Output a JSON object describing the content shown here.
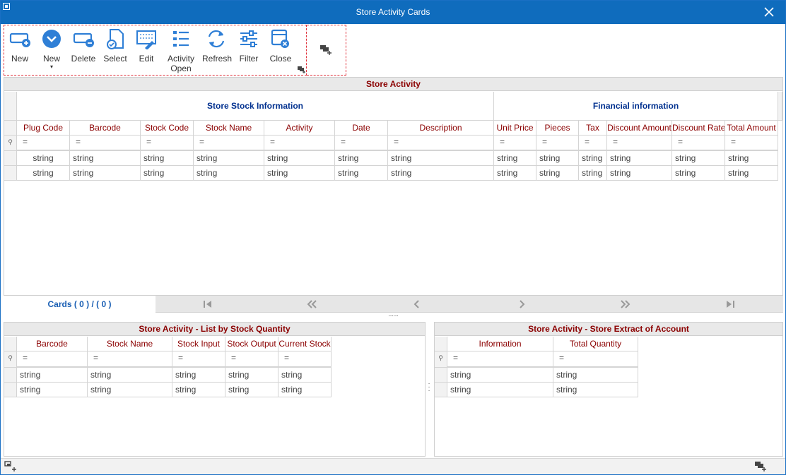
{
  "window": {
    "title": "Store Activity Cards",
    "accent": "#0f6cbd",
    "header_text_color": "#8b0000",
    "band_text_color": "#00308f"
  },
  "toolbar": {
    "buttons": [
      {
        "label": "New",
        "icon": "new-card-icon"
      },
      {
        "label": "New",
        "icon": "chevron-down-circle-icon",
        "caret": "▾"
      },
      {
        "label": "Delete",
        "icon": "delete-card-icon"
      },
      {
        "label": "Select",
        "icon": "select-document-icon"
      },
      {
        "label": "Edit",
        "icon": "edit-grid-icon"
      },
      {
        "label": "Activity",
        "label2": "Open",
        "icon": "list-icon"
      },
      {
        "label": "Refresh",
        "icon": "refresh-icon"
      },
      {
        "label": "Filter",
        "icon": "sliders-icon"
      },
      {
        "label": "Close",
        "icon": "close-card-icon"
      }
    ]
  },
  "main": {
    "section_title": "Store Activity",
    "bands": [
      {
        "title": "Store Stock Information"
      },
      {
        "title": "Financial information"
      }
    ],
    "columns": [
      "Plug Code",
      "Barcode",
      "Stock Code",
      "Stock Name",
      "Activity",
      "Date",
      "Description",
      "Unit Price",
      "Pieces",
      "Tax",
      "Discount Amount",
      "Discount Rate",
      "Total Amount"
    ],
    "filter_symbol": "=",
    "rows": [
      [
        "string",
        "string",
        "string",
        "string",
        "string",
        "string",
        "string",
        "string",
        "string",
        "string",
        "string",
        "string",
        "string"
      ],
      [
        "string",
        "string",
        "string",
        "string",
        "string",
        "string",
        "string",
        "string",
        "string",
        "string",
        "string",
        "string",
        "string"
      ]
    ],
    "navigator": {
      "cards_label": "Cards ( 0 ) / ( 0 )"
    }
  },
  "left_panel": {
    "title": "Store Activity - List by Stock Quantity",
    "columns": [
      "Barcode",
      "Stock Name",
      "Stock Input",
      "Stock Output",
      "Current Stock"
    ],
    "filter_symbol": "=",
    "rows": [
      [
        "string",
        "string",
        "string",
        "string",
        "string"
      ],
      [
        "string",
        "string",
        "string",
        "string",
        "string"
      ]
    ]
  },
  "right_panel": {
    "title": "Store Activity - Store Extract of Account",
    "columns": [
      "Information",
      "Total Quantity"
    ],
    "filter_symbol": "=",
    "rows": [
      [
        "string",
        "string"
      ],
      [
        "string",
        "string"
      ]
    ]
  }
}
